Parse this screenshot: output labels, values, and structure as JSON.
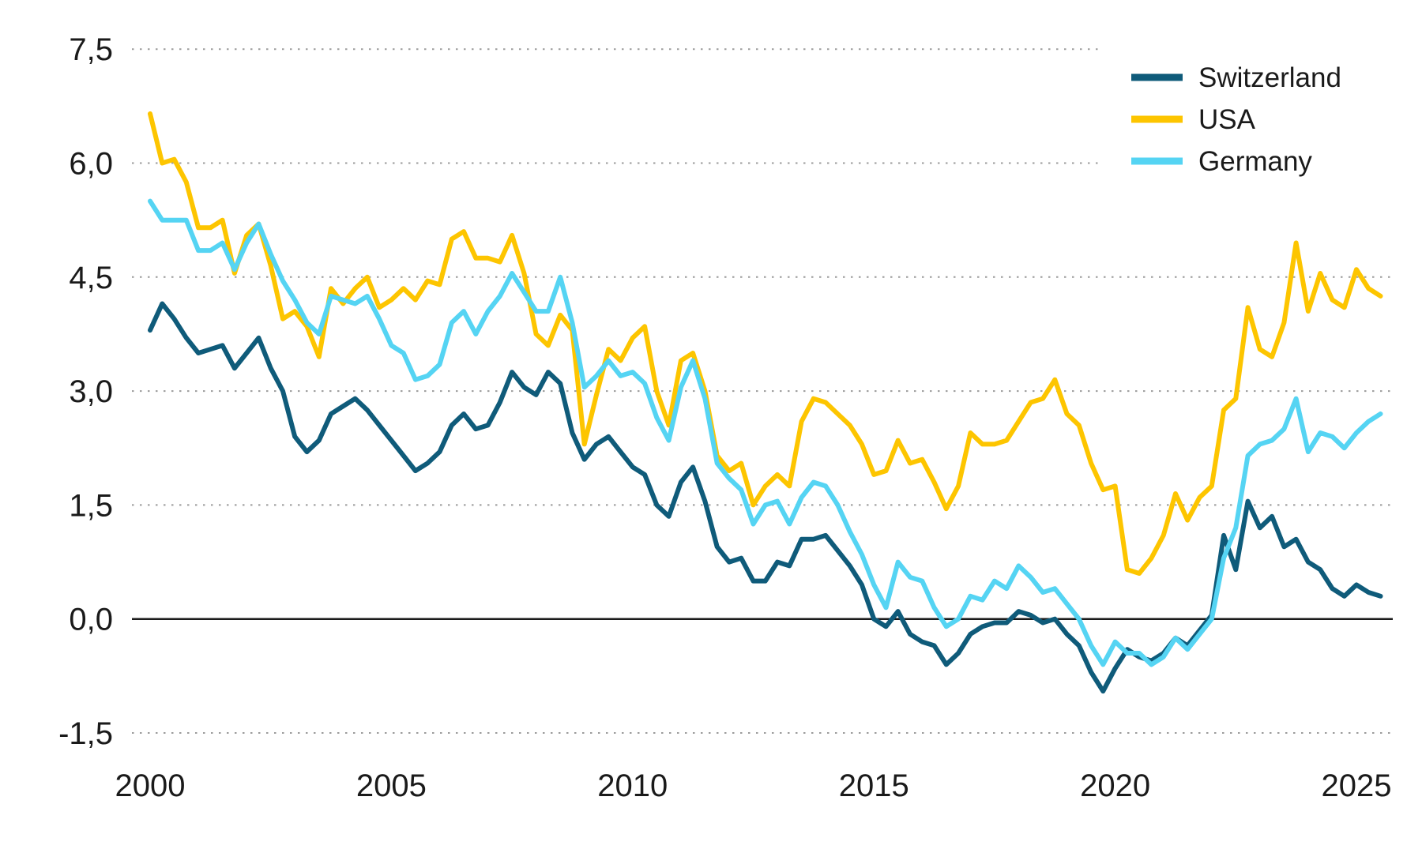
{
  "page": {
    "background": "#ffffff",
    "text_color": "#1a1a1a"
  },
  "legend": {
    "position": "top-right",
    "entries": [
      {
        "label": "Switzerland",
        "color": "#0F5B7A"
      },
      {
        "label": "USA",
        "color": "#FDC500"
      },
      {
        "label": "Germany",
        "color": "#55D4F3"
      }
    ]
  },
  "chart_data": {
    "type": "line",
    "title": "",
    "xlabel": "",
    "ylabel": "",
    "decimal_separator": ",",
    "grid": "dotted-horizontal",
    "zero_line": true,
    "legend_position": "top-right",
    "xlim": [
      1999.6,
      2025.8
    ],
    "ylim": [
      -1.5,
      7.5
    ],
    "x_start": 2000,
    "x_step": 0.25,
    "xticks": {
      "values": [
        2000,
        2005,
        2010,
        2015,
        2020,
        2025
      ],
      "labels": [
        "2000",
        "2005",
        "2010",
        "2015",
        "2020",
        "2025"
      ]
    },
    "yticks": {
      "values": [
        7.5,
        6.0,
        4.5,
        3.0,
        1.5,
        0.0,
        -1.5
      ],
      "labels": [
        "7,5",
        "6,0",
        "4,5",
        "3,0",
        "1,5",
        "0,0",
        "-1,5"
      ]
    },
    "series": [
      {
        "name": "Switzerland",
        "color": "#0F5B7A",
        "values": [
          3.8,
          4.15,
          3.95,
          3.7,
          3.5,
          3.55,
          3.6,
          3.3,
          3.5,
          3.7,
          3.3,
          3.0,
          2.4,
          2.2,
          2.35,
          2.7,
          2.8,
          2.9,
          2.75,
          2.55,
          2.35,
          2.15,
          1.95,
          2.05,
          2.2,
          2.55,
          2.7,
          2.5,
          2.55,
          2.85,
          3.25,
          3.05,
          2.95,
          3.25,
          3.1,
          2.45,
          2.1,
          2.3,
          2.4,
          2.2,
          2.0,
          1.9,
          1.5,
          1.35,
          1.8,
          2.0,
          1.55,
          0.95,
          0.75,
          0.8,
          0.5,
          0.5,
          0.75,
          0.7,
          1.05,
          1.05,
          1.1,
          0.9,
          0.7,
          0.45,
          0.0,
          -0.1,
          0.1,
          -0.2,
          -0.3,
          -0.35,
          -0.6,
          -0.45,
          -0.2,
          -0.1,
          -0.05,
          -0.05,
          0.1,
          0.05,
          -0.05,
          0.0,
          -0.2,
          -0.35,
          -0.7,
          -0.95,
          -0.65,
          -0.4,
          -0.5,
          -0.55,
          -0.45,
          -0.25,
          -0.35,
          -0.15,
          0.05,
          1.1,
          0.65,
          1.55,
          1.2,
          1.35,
          0.95,
          1.05,
          0.75,
          0.65,
          0.4,
          0.3,
          0.45,
          0.35,
          0.3
        ]
      },
      {
        "name": "USA",
        "color": "#FDC500",
        "values": [
          6.65,
          6.0,
          6.05,
          5.75,
          5.15,
          5.15,
          5.25,
          4.55,
          5.05,
          5.2,
          4.65,
          3.95,
          4.05,
          3.85,
          3.45,
          4.35,
          4.15,
          4.35,
          4.5,
          4.1,
          4.2,
          4.35,
          4.2,
          4.45,
          4.4,
          5.0,
          5.1,
          4.75,
          4.75,
          4.7,
          5.05,
          4.55,
          3.75,
          3.6,
          4.0,
          3.8,
          2.3,
          2.95,
          3.55,
          3.4,
          3.7,
          3.85,
          3.0,
          2.55,
          3.4,
          3.5,
          3.0,
          2.15,
          1.95,
          2.05,
          1.5,
          1.75,
          1.9,
          1.75,
          2.6,
          2.9,
          2.85,
          2.7,
          2.55,
          2.3,
          1.9,
          1.95,
          2.35,
          2.05,
          2.1,
          1.8,
          1.45,
          1.75,
          2.45,
          2.3,
          2.3,
          2.35,
          2.6,
          2.85,
          2.9,
          3.15,
          2.7,
          2.55,
          2.05,
          1.7,
          1.75,
          0.65,
          0.6,
          0.8,
          1.1,
          1.65,
          1.3,
          1.6,
          1.75,
          2.75,
          2.9,
          4.1,
          3.55,
          3.45,
          3.9,
          4.95,
          4.05,
          4.55,
          4.2,
          4.1,
          4.6,
          4.35,
          4.25
        ]
      },
      {
        "name": "Germany",
        "color": "#55D4F3",
        "values": [
          5.5,
          5.25,
          5.25,
          5.25,
          4.85,
          4.85,
          4.95,
          4.6,
          4.95,
          5.2,
          4.8,
          4.45,
          4.2,
          3.9,
          3.75,
          4.25,
          4.2,
          4.15,
          4.25,
          3.95,
          3.6,
          3.5,
          3.15,
          3.2,
          3.35,
          3.9,
          4.05,
          3.75,
          4.05,
          4.25,
          4.55,
          4.3,
          4.05,
          4.05,
          4.5,
          3.9,
          3.05,
          3.2,
          3.4,
          3.2,
          3.25,
          3.1,
          2.65,
          2.35,
          3.05,
          3.4,
          2.9,
          2.05,
          1.85,
          1.7,
          1.25,
          1.5,
          1.55,
          1.25,
          1.6,
          1.8,
          1.75,
          1.5,
          1.15,
          0.85,
          0.45,
          0.15,
          0.75,
          0.55,
          0.5,
          0.15,
          -0.1,
          0.0,
          0.3,
          0.25,
          0.5,
          0.4,
          0.7,
          0.55,
          0.35,
          0.4,
          0.2,
          0.0,
          -0.35,
          -0.6,
          -0.3,
          -0.45,
          -0.45,
          -0.6,
          -0.5,
          -0.25,
          -0.4,
          -0.2,
          0.0,
          0.8,
          1.2,
          2.15,
          2.3,
          2.35,
          2.5,
          2.9,
          2.2,
          2.45,
          2.4,
          2.25,
          2.45,
          2.6,
          2.7
        ]
      }
    ],
    "style": {
      "gridline_color": "#9b9b9b",
      "zero_line_color": "#1a1a1a",
      "line_width": 6,
      "legend_swatch_width": 9
    }
  }
}
